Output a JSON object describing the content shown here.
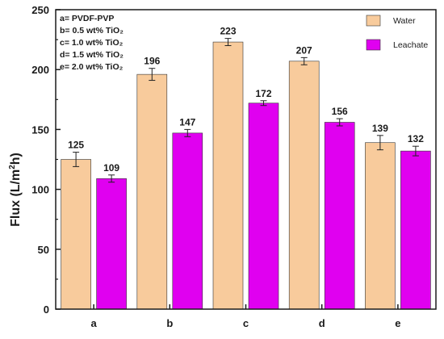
{
  "chart_data": {
    "type": "bar",
    "categories": [
      "a",
      "b",
      "c",
      "d",
      "e"
    ],
    "series": [
      {
        "name": "Water",
        "color": "#f8cb9c",
        "values": [
          125,
          196,
          223,
          207,
          139
        ],
        "errors": [
          6,
          5,
          3,
          3,
          6
        ]
      },
      {
        "name": "Leachate",
        "color": "#e000f0",
        "values": [
          109,
          147,
          172,
          156,
          132
        ],
        "errors": [
          3,
          3,
          2,
          3,
          4
        ]
      }
    ],
    "ylabel_main": "Flux",
    "ylabel_unit_pre": "(L/m",
    "ylabel_unit_sup": "2",
    "ylabel_unit_post": "h)",
    "ylim": [
      0,
      250
    ],
    "yticks": [
      "0",
      "50",
      "100",
      "150",
      "200",
      "250"
    ],
    "annotations": [
      "a= PVDF-PVP",
      "b= 0.5 wt% TiO₂",
      "c= 1.0 wt% TiO₂",
      "d= 1.5 wt% TiO₂",
      "e= 2.0 wt% TiO₂"
    ],
    "legend_position": "top-right"
  }
}
